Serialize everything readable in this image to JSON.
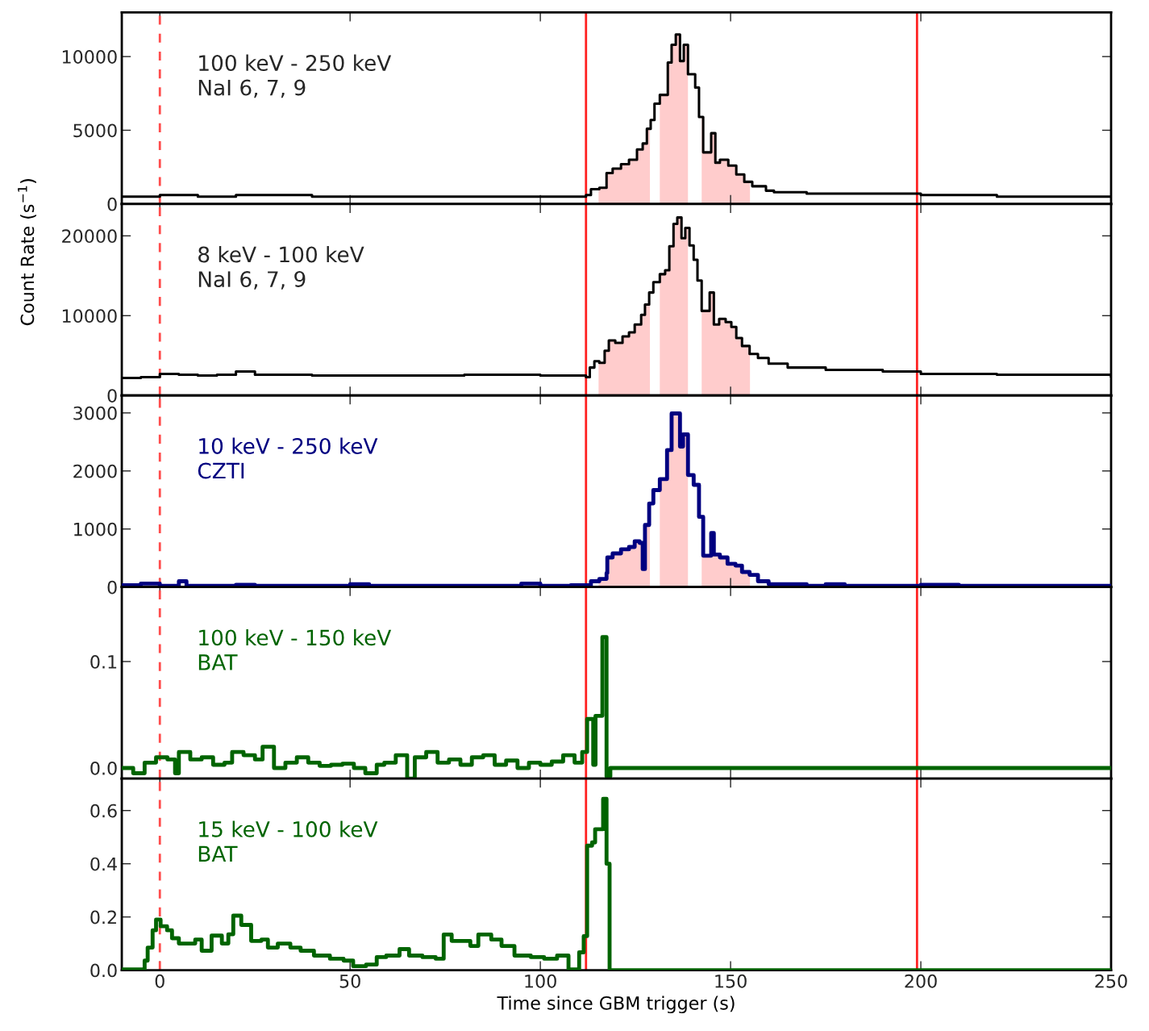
{
  "chart_data": [
    {
      "type": "step",
      "xlim": [
        -10,
        250
      ],
      "xticks": [
        0,
        50,
        100,
        150,
        200,
        250
      ],
      "ylim": [
        0,
        13000
      ],
      "yticks": [
        0,
        5000,
        10000
      ],
      "tick_labels": "y",
      "grid": false,
      "legend": false,
      "annotations": [
        "100 keV - 250 keV\nNaI 6, 7, 9"
      ],
      "series": [
        {
          "type": "area",
          "color": "#ffcccc",
          "x": [
            115.3,
            115.5,
            117.4,
            119,
            121.2,
            123.3,
            125.4,
            126.9,
            128,
            128.8
          ],
          "values": [
            1000,
            1100,
            2100,
            2400,
            2700,
            3000,
            3700,
            4100,
            5100,
            5100
          ]
        },
        {
          "type": "area",
          "color": "#ffcccc",
          "x": [
            131.4,
            133.5,
            134.5,
            135.6,
            136.7,
            137.7,
            138.8
          ],
          "values": [
            7400,
            9600,
            10800,
            11500,
            9700,
            10800,
            10800
          ]
        },
        {
          "type": "area",
          "color": "#ffcccc",
          "x": [
            142.4,
            142.8,
            144.9,
            146,
            147.2,
            149.4,
            151.5,
            153.6,
            155.1
          ],
          "values": [
            5900,
            3500,
            4800,
            2800,
            3000,
            2600,
            2000,
            1500,
            1500
          ]
        },
        {
          "color": "#000000",
          "x": [
            -10,
            0,
            10,
            20,
            30,
            40,
            60,
            80,
            100,
            112,
            113.3,
            115.5,
            117.4,
            119,
            121.2,
            123.3,
            125.4,
            126.9,
            128,
            129,
            130,
            131.4,
            133.5,
            134.5,
            135.6,
            136.7,
            137.7,
            138.8,
            140.7,
            141.7,
            142.8,
            144.9,
            146,
            147.2,
            149.4,
            151.5,
            153.6,
            155.7,
            159.3,
            161.4,
            170,
            180,
            200,
            220,
            250
          ],
          "values": [
            500,
            600,
            500,
            600,
            600,
            500,
            500,
            500,
            500,
            600,
            1000,
            1100,
            2100,
            2400,
            2700,
            3000,
            3700,
            4100,
            5100,
            5700,
            6800,
            7400,
            9600,
            10800,
            11500,
            9700,
            10800,
            8800,
            7900,
            5900,
            3500,
            4800,
            2800,
            3000,
            2600,
            2000,
            1500,
            1200,
            900,
            800,
            700,
            700,
            600,
            500,
            500
          ]
        }
      ],
      "ref_lines": [
        {
          "axis": "x",
          "value": 0,
          "color": "#ff4c4c",
          "line_style": "dashed"
        },
        {
          "axis": "x",
          "value": 112,
          "color": "#ff2020",
          "line_style": "solid"
        },
        {
          "axis": "x",
          "value": 199,
          "color": "#ff2020",
          "line_style": "solid"
        }
      ]
    },
    {
      "type": "step",
      "xlim": [
        -10,
        250
      ],
      "xticks": [
        0,
        50,
        100,
        150,
        200,
        250
      ],
      "ylim": [
        0,
        24000
      ],
      "yticks": [
        0,
        10000,
        20000
      ],
      "tick_labels": "y",
      "grid": false,
      "legend": false,
      "ylabel": "Count Rate (s$^{−1}$)",
      "annotations": [
        "8 keV - 100 keV\nNaI 6, 7, 9"
      ],
      "series": [
        {
          "type": "area",
          "color": "#ffcccc",
          "x": [
            115.3,
            115.5,
            116.9,
            118,
            119.7,
            121.6,
            123.3,
            124.8,
            126.5,
            127.5,
            128.6,
            128.8
          ],
          "values": [
            4300,
            4100,
            5600,
            6900,
            6600,
            7400,
            7900,
            8900,
            10100,
            11400,
            12900,
            12900
          ]
        },
        {
          "type": "area",
          "color": "#ffcccc",
          "x": [
            131.4,
            132.8,
            133.9,
            135,
            136,
            137.1,
            138.1,
            138.8
          ],
          "values": [
            15200,
            15700,
            18700,
            21500,
            22300,
            19700,
            21000,
            21000
          ]
        },
        {
          "type": "area",
          "color": "#ffcccc",
          "x": [
            142.4,
            144.5,
            145.6,
            147,
            148.7,
            150.2,
            151.5,
            153,
            155,
            155.1
          ],
          "values": [
            10600,
            12900,
            8900,
            9600,
            9200,
            8600,
            7200,
            6200,
            5200,
            5200
          ]
        },
        {
          "color": "#000000",
          "x": [
            -10,
            -5,
            0,
            5,
            10,
            15,
            20,
            25,
            40,
            60,
            80,
            100,
            112,
            113,
            114.2,
            115.5,
            116.9,
            118,
            119.7,
            121.6,
            123.3,
            124.8,
            126.5,
            127.5,
            128.6,
            129.7,
            131.4,
            132.8,
            133.9,
            135,
            136,
            137.1,
            138.1,
            139.2,
            140.3,
            141.3,
            142.4,
            144.5,
            145.6,
            147,
            148.7,
            150.2,
            151.5,
            153,
            155,
            157.2,
            160,
            165,
            175,
            190,
            200,
            220,
            250
          ],
          "values": [
            2200,
            2300,
            2700,
            2600,
            2500,
            2600,
            3000,
            2600,
            2500,
            2500,
            2600,
            2500,
            2300,
            3500,
            4300,
            4100,
            5600,
            6900,
            6600,
            7400,
            7900,
            8900,
            10100,
            11400,
            12900,
            14200,
            15200,
            15700,
            18700,
            21500,
            22300,
            19700,
            21000,
            18800,
            17000,
            14400,
            10600,
            12900,
            8900,
            9600,
            9200,
            8600,
            7200,
            6200,
            5200,
            4700,
            4000,
            3500,
            3200,
            3000,
            2700,
            2600,
            2400
          ]
        }
      ],
      "ref_lines": [
        {
          "axis": "x",
          "value": 0,
          "color": "#ff4c4c",
          "line_style": "dashed"
        },
        {
          "axis": "x",
          "value": 112,
          "color": "#ff2020",
          "line_style": "solid"
        },
        {
          "axis": "x",
          "value": 199,
          "color": "#ff2020",
          "line_style": "solid"
        }
      ]
    },
    {
      "type": "step",
      "xlim": [
        -10,
        250
      ],
      "xticks": [
        0,
        50,
        100,
        150,
        200,
        250
      ],
      "ylim": [
        0,
        3300
      ],
      "yticks": [
        0,
        1000,
        2000,
        3000
      ],
      "tick_labels": "y",
      "grid": false,
      "legend": false,
      "annotations": [
        "10 keV - 250 keV\nCZTI"
      ],
      "series": [
        {
          "type": "area",
          "color": "#ffcccc",
          "x": [
            115.3,
            115.5,
            117.4,
            117.6,
            119,
            121.2,
            123.3,
            124.8,
            126.1,
            126.9,
            127.5,
            128.6,
            128.8
          ],
          "values": [
            100,
            140,
            240,
            510,
            580,
            650,
            690,
            790,
            760,
            310,
            1070,
            1440,
            1440
          ]
        },
        {
          "type": "area",
          "color": "#ffcccc",
          "x": [
            131.4,
            133.3,
            134.5,
            136.7,
            137.5,
            138.8
          ],
          "values": [
            1860,
            2360,
            2990,
            2420,
            2630,
            2630
          ]
        },
        {
          "type": "area",
          "color": "#ffcccc",
          "x": [
            142.4,
            142.8,
            144.9,
            145.6,
            147.2,
            149.2,
            151.3,
            153,
            155,
            155.1
          ],
          "values": [
            1210,
            540,
            930,
            560,
            510,
            400,
            370,
            260,
            210,
            210
          ]
        },
        {
          "color": "#000080",
          "x": [
            -10,
            -5,
            0,
            5,
            7,
            20,
            25,
            40,
            50,
            55,
            95,
            100,
            108,
            112,
            113.3,
            115.5,
            117.4,
            117.6,
            119,
            121.2,
            123.3,
            124.8,
            126.1,
            126.9,
            127.5,
            128.6,
            129.7,
            131.4,
            133.3,
            134.5,
            136.7,
            137.5,
            138.8,
            140.3,
            141.7,
            142.8,
            144.9,
            145.6,
            147.2,
            149.2,
            151.3,
            153,
            155,
            157.2,
            160,
            170,
            175,
            180,
            200,
            210,
            250
          ],
          "values": [
            30,
            60,
            20,
            100,
            20,
            40,
            20,
            20,
            50,
            20,
            60,
            20,
            30,
            30,
            100,
            140,
            240,
            510,
            580,
            650,
            690,
            790,
            760,
            310,
            1070,
            1440,
            1670,
            1860,
            2360,
            2990,
            2420,
            2630,
            1930,
            1760,
            1210,
            540,
            930,
            560,
            510,
            400,
            370,
            260,
            210,
            100,
            50,
            20,
            50,
            20,
            40,
            20,
            20
          ]
        }
      ],
      "ref_lines": [
        {
          "axis": "x",
          "value": 0,
          "color": "#ff4c4c",
          "line_style": "dashed"
        },
        {
          "axis": "x",
          "value": 112,
          "color": "#ff2020",
          "line_style": "solid"
        },
        {
          "axis": "x",
          "value": 199,
          "color": "#ff2020",
          "line_style": "solid"
        }
      ]
    },
    {
      "type": "step",
      "xlim": [
        -10,
        250
      ],
      "xticks": [
        0,
        50,
        100,
        150,
        200,
        250
      ],
      "ylim": [
        -0.01,
        0.17
      ],
      "yticks": [
        {
          "value": 0,
          "label": "0.0"
        },
        0.1
      ],
      "tick_labels": "y",
      "grid": false,
      "legend": false,
      "annotations": [
        "100 keV - 150 keV\nBAT"
      ],
      "series": [
        {
          "color": "#006400",
          "x": [
            -10,
            -7,
            -4,
            -1,
            2,
            4,
            5,
            8,
            11,
            14,
            17,
            19,
            22,
            25,
            27,
            30,
            33,
            36,
            39,
            42,
            45,
            48,
            51,
            54,
            57,
            59,
            62,
            65,
            67,
            70,
            73,
            76,
            79,
            82,
            85,
            88,
            91,
            94,
            97,
            100,
            103,
            106,
            109,
            111,
            112.3,
            113.9,
            114.5,
            116.3,
            117.4,
            118.4,
            250
          ],
          "values": [
            0.0,
            -0.005,
            0.005,
            0.01,
            0.008,
            -0.005,
            0.015,
            0.008,
            0.01,
            0.003,
            0.005,
            0.015,
            0.012,
            0.008,
            0.02,
            0.0,
            0.005,
            0.01,
            0.005,
            0.002,
            0.003,
            0.004,
            0.0,
            -0.005,
            0.003,
            0.005,
            0.012,
            -0.01,
            0.01,
            0.015,
            0.005,
            0.008,
            0.003,
            0.01,
            0.012,
            0.003,
            0.007,
            0.0,
            0.005,
            0.003,
            0.006,
            0.012,
            0.005,
            0.015,
            0.046,
            0.003,
            0.049,
            0.123,
            -0.008,
            0.0,
            0.0
          ]
        }
      ],
      "ref_lines": [
        {
          "axis": "x",
          "value": 0,
          "color": "#ff4c4c",
          "line_style": "dashed"
        },
        {
          "axis": "x",
          "value": 112,
          "color": "#ff2020",
          "line_style": "solid"
        },
        {
          "axis": "x",
          "value": 199,
          "color": "#ff2020",
          "line_style": "solid"
        }
      ]
    },
    {
      "type": "step",
      "xlim": [
        -10,
        250
      ],
      "xticks": [
        0,
        50,
        100,
        150,
        200,
        250
      ],
      "ylim": [
        0,
        0.72
      ],
      "yticks": [
        {
          "value": 0,
          "label": "0.0"
        },
        0.2,
        0.4,
        0.6
      ],
      "grid": false,
      "legend": false,
      "xlabel": "Time since GBM trigger (s)",
      "annotations": [
        "15 keV - 100 keV\nBAT"
      ],
      "series": [
        {
          "color": "#006400",
          "x": [
            -9.7,
            -4,
            -3.2,
            -1.9,
            -1,
            0.2,
            1.9,
            3.2,
            5,
            7.6,
            9.3,
            11,
            13.6,
            16.3,
            18,
            19.3,
            21.4,
            24,
            26.7,
            28.4,
            31,
            34.3,
            37,
            40.5,
            44.7,
            48.3,
            50.8,
            54.2,
            57,
            59.5,
            63,
            65.5,
            69,
            72.5,
            74.6,
            76.7,
            79.4,
            81.6,
            83.7,
            87.1,
            89.8,
            93.2,
            97.5,
            101,
            104.4,
            107.4,
            110.2,
            111.4,
            112.3,
            113.6,
            114.4,
            115.7,
            116.5,
            117.4,
            118.2,
            250
          ],
          "values": [
            0.003,
            0.036,
            0.085,
            0.15,
            0.19,
            0.165,
            0.15,
            0.12,
            0.1,
            0.1,
            0.115,
            0.073,
            0.13,
            0.1,
            0.135,
            0.205,
            0.17,
            0.11,
            0.115,
            0.085,
            0.1,
            0.085,
            0.073,
            0.055,
            0.043,
            0.036,
            0.015,
            0.021,
            0.049,
            0.055,
            0.079,
            0.055,
            0.049,
            0.043,
            0.134,
            0.11,
            0.11,
            0.091,
            0.134,
            0.115,
            0.091,
            0.055,
            0.049,
            0.043,
            0.055,
            0.003,
            0.067,
            0.128,
            0.468,
            0.48,
            0.53,
            0.53,
            0.644,
            0.4,
            0.0,
            0.0
          ]
        }
      ],
      "ref_lines": [
        {
          "axis": "x",
          "value": 0,
          "color": "#ff4c4c",
          "line_style": "dashed"
        },
        {
          "axis": "x",
          "value": 112,
          "color": "#ff2020",
          "line_style": "solid"
        },
        {
          "axis": "x",
          "value": 199,
          "color": "#ff2020",
          "line_style": "solid"
        }
      ]
    }
  ]
}
